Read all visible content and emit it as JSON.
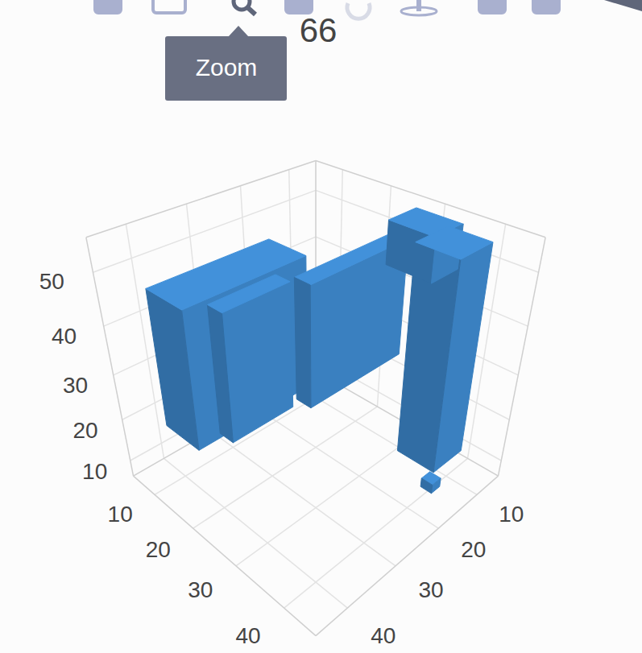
{
  "chart_data": {
    "type": "voxel3d",
    "title": "66",
    "annotations": [
      "Zoom"
    ],
    "color": "#3a80c0",
    "xlim": [
      4,
      46
    ],
    "ylim": [
      4,
      46
    ],
    "zlim": [
      6,
      56
    ],
    "xticks": [
      10,
      20,
      30,
      40
    ],
    "yticks": [
      10,
      20,
      30,
      40
    ],
    "zticks": [
      10,
      20,
      30,
      40,
      50
    ],
    "grid": true,
    "boxes": [
      {
        "x": [
          10,
          18
        ],
        "y": [
          20,
          42
        ],
        "z": [
          20,
          48
        ]
      },
      {
        "x": [
          18,
          21
        ],
        "y": [
          26,
          38
        ],
        "z": [
          21,
          47
        ]
      },
      {
        "x": [
          24,
          27
        ],
        "y": [
          8,
          28
        ],
        "z": [
          26,
          50
        ]
      },
      {
        "x": [
          35,
          42
        ],
        "y": [
          10,
          17
        ],
        "z": [
          14,
          56
        ]
      },
      {
        "x": [
          28,
          36
        ],
        "y": [
          8,
          14
        ],
        "z": [
          48,
          56
        ]
      },
      {
        "x": [
          42,
          44
        ],
        "y": [
          18,
          20
        ],
        "z": [
          13,
          15
        ]
      }
    ]
  }
}
